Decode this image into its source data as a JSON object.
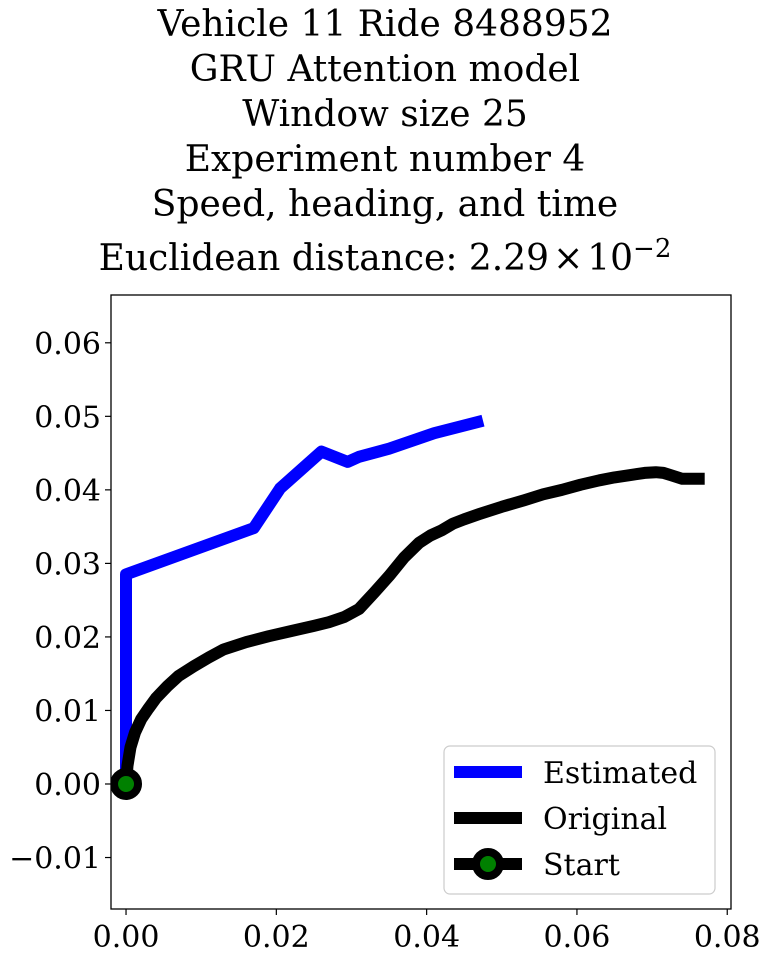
{
  "chart_data": {
    "type": "line",
    "title_lines": [
      "Vehicle 11 Ride 8488952",
      "GRU Attention model",
      "Window size 25",
      "Experiment number 4",
      "Speed, heading, and time"
    ],
    "title_distance_prefix": "Euclidean distance: ",
    "title_distance_mantissa": "2.29",
    "title_distance_times": "×",
    "title_distance_base": "10",
    "title_distance_exponent": "−2",
    "xlabel": "",
    "ylabel": "",
    "xlim": [
      -0.002,
      0.0805
    ],
    "ylim": [
      -0.017,
      0.0665
    ],
    "x_ticks": [
      0.0,
      0.02,
      0.04,
      0.06,
      0.08
    ],
    "x_tick_labels": [
      "0.00",
      "0.02",
      "0.04",
      "0.06",
      "0.08"
    ],
    "y_ticks": [
      -0.01,
      0.0,
      0.01,
      0.02,
      0.03,
      0.04,
      0.05,
      0.06
    ],
    "y_tick_labels": [
      "−0.01",
      "0.00",
      "0.01",
      "0.02",
      "0.03",
      "0.04",
      "0.05",
      "0.06"
    ],
    "grid": false,
    "legend_position": "lower-right",
    "series": [
      {
        "name": "Estimated",
        "color": "#0000ff",
        "x": [
          0.0,
          0.0,
          0.0,
          0.0,
          0.0,
          0.0,
          0.0,
          0.017,
          0.0205,
          0.026,
          0.0295,
          0.031,
          0.035,
          0.041,
          0.0475
        ],
        "y": [
          0.0,
          0.01,
          0.02,
          0.026,
          0.028,
          0.0283,
          0.0285,
          0.0348,
          0.0402,
          0.0452,
          0.0438,
          0.0445,
          0.0456,
          0.0477,
          0.0494
        ]
      },
      {
        "name": "Original",
        "color": "#000000",
        "x": [
          0.0,
          0.0002,
          0.0006,
          0.0012,
          0.002,
          0.003,
          0.004,
          0.0055,
          0.007,
          0.009,
          0.011,
          0.013,
          0.016,
          0.019,
          0.022,
          0.025,
          0.027,
          0.029,
          0.031,
          0.033,
          0.035,
          0.037,
          0.039,
          0.0405,
          0.042,
          0.0435,
          0.045,
          0.047,
          0.05,
          0.053,
          0.0555,
          0.058,
          0.0605,
          0.063,
          0.065,
          0.067,
          0.069,
          0.0705,
          0.0715,
          0.0725,
          0.074,
          0.075,
          0.077
        ],
        "y": [
          0.0,
          0.0025,
          0.005,
          0.007,
          0.0088,
          0.0103,
          0.0117,
          0.0133,
          0.0147,
          0.016,
          0.0172,
          0.0183,
          0.0193,
          0.0201,
          0.0208,
          0.0215,
          0.022,
          0.0227,
          0.0238,
          0.026,
          0.0283,
          0.0308,
          0.0328,
          0.0338,
          0.0345,
          0.0354,
          0.036,
          0.0367,
          0.0377,
          0.0386,
          0.0394,
          0.04,
          0.0407,
          0.0413,
          0.0417,
          0.042,
          0.0423,
          0.0424,
          0.0423,
          0.042,
          0.0415,
          0.0415,
          0.0415
        ]
      }
    ],
    "start": {
      "name": "Start",
      "x": 0.0,
      "y": 0.0,
      "marker_edge_color": "#000000",
      "marker_face_color": "#008000"
    }
  }
}
